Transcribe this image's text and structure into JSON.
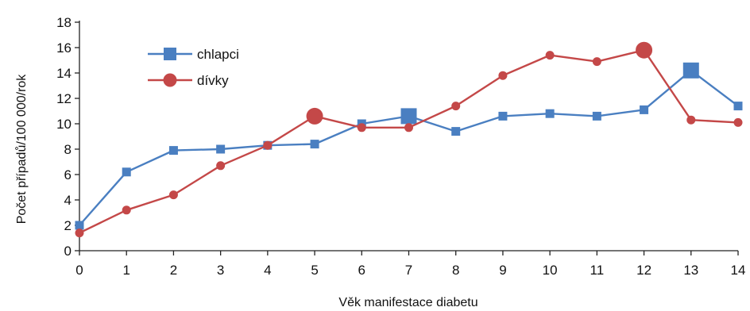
{
  "chart_data": {
    "type": "line",
    "title": "",
    "xlabel": "Věk manifestace diabetu",
    "ylabel": "Počet případů/100 000/rok",
    "x": [
      0,
      1,
      2,
      3,
      4,
      5,
      6,
      7,
      8,
      9,
      10,
      11,
      12,
      13,
      14
    ],
    "xlim": [
      0,
      14
    ],
    "ylim": [
      0,
      18
    ],
    "yticks": [
      0,
      2,
      4,
      6,
      8,
      10,
      12,
      14,
      16,
      18
    ],
    "grid": false,
    "legend_position": "top-left",
    "series": [
      {
        "name": "chlapci",
        "color": "#4a7fc1",
        "marker": "square",
        "values": [
          2.0,
          6.2,
          7.9,
          8.0,
          8.3,
          8.4,
          10.0,
          10.6,
          9.4,
          10.6,
          10.8,
          10.6,
          11.1,
          14.2,
          11.4
        ],
        "highlight": [
          7,
          13
        ]
      },
      {
        "name": "dívky",
        "color": "#c44848",
        "marker": "circle",
        "values": [
          1.4,
          3.2,
          4.4,
          6.7,
          8.3,
          10.6,
          9.7,
          9.7,
          11.4,
          13.8,
          15.4,
          14.9,
          15.8,
          10.3,
          10.1
        ],
        "highlight": [
          5,
          12
        ]
      }
    ]
  }
}
